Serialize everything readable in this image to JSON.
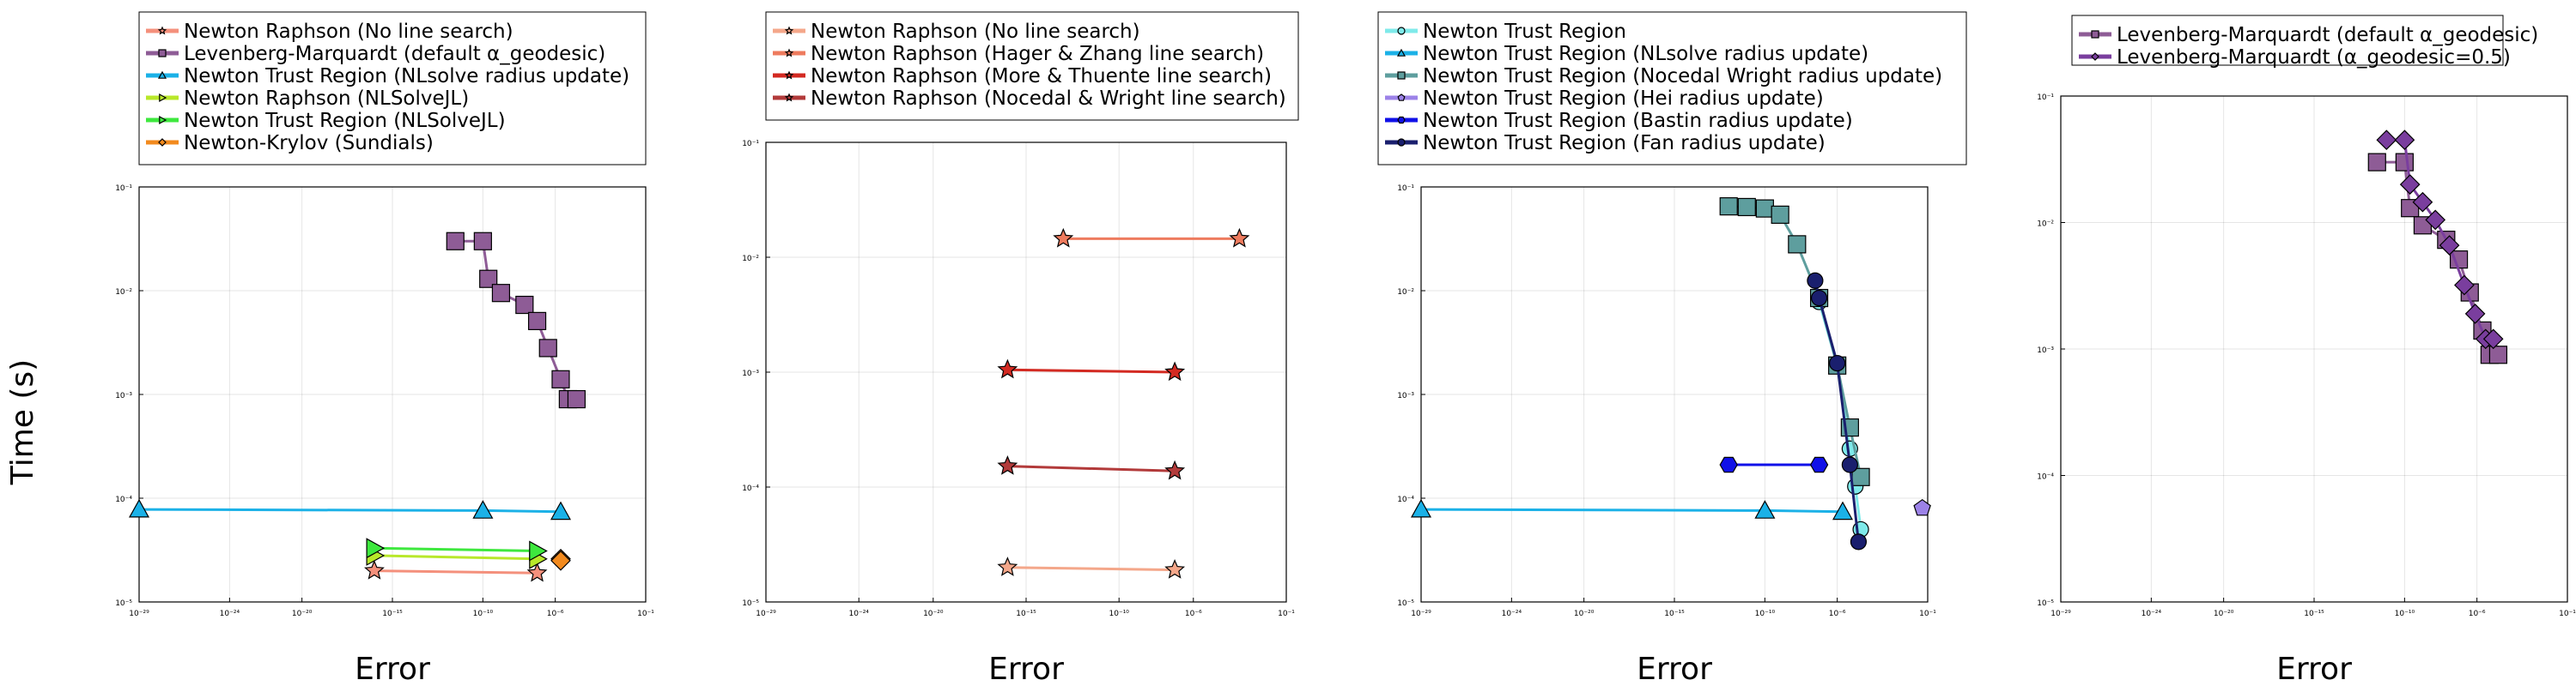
{
  "figure": {
    "ylabel": "Time (s)"
  },
  "chart_data": [
    {
      "type": "scatter",
      "xlabel": "Error",
      "xscale": "log",
      "yscale": "log",
      "xlim": [
        1e-29,
        0.1
      ],
      "ylim": [
        1e-05,
        0.1
      ],
      "xticks": [
        "10⁻²⁹",
        "10⁻²⁴",
        "10⁻²⁰",
        "10⁻¹⁵",
        "10⁻¹⁰",
        "10⁻⁶",
        "10⁻¹"
      ],
      "yticks": [
        "10⁻⁵",
        "10⁻⁴",
        "10⁻³",
        "10⁻²",
        "10⁻¹"
      ],
      "grid": true,
      "legend_position": "top",
      "series": [
        {
          "name": "Newton Raphson (No line search)",
          "color": "#F4907C",
          "marker": "star",
          "x": [
            1e-16,
            1e-07
          ],
          "y": [
            2e-05,
            1.9e-05
          ]
        },
        {
          "name": "Levenberg-Marquardt (default α_geodesic)",
          "color": "#8E5C96",
          "marker": "square",
          "x": [
            3e-12,
            1e-10,
            2e-10,
            1e-09,
            2e-08,
            1e-07,
            4e-07,
            2e-06,
            5e-06,
            1.5e-05
          ],
          "y": [
            0.03,
            0.03,
            0.013,
            0.0095,
            0.0073,
            0.0051,
            0.0028,
            0.0014,
            0.0009,
            0.0009
          ]
        },
        {
          "name": "Newton Trust Region (NLsolve radius update)",
          "color": "#1BB1E7",
          "marker": "triangle",
          "x": [
            1e-29,
            1e-10,
            2e-06
          ],
          "y": [
            7.8e-05,
            7.6e-05,
            7.4e-05
          ]
        },
        {
          "name": "Newton Raphson (NLSolveJL)",
          "color": "#B8E82A",
          "marker": "triangle-right",
          "x": [
            1e-16,
            1e-07
          ],
          "y": [
            2.8e-05,
            2.6e-05
          ]
        },
        {
          "name": "Newton Trust Region (NLSolveJL)",
          "color": "#3EE83E",
          "marker": "triangle-right",
          "x": [
            1e-16,
            1e-07
          ],
          "y": [
            3.3e-05,
            3.1e-05
          ]
        },
        {
          "name": "Newton-Krylov (Sundials)",
          "color": "#F28A1E",
          "marker": "diamond",
          "x": [
            2e-06,
            2e-06
          ],
          "y": [
            2.6e-05,
            2.5e-05
          ]
        }
      ]
    },
    {
      "type": "scatter",
      "xlabel": "Error",
      "xscale": "log",
      "yscale": "log",
      "xlim": [
        1e-29,
        0.1
      ],
      "ylim": [
        1e-05,
        0.1
      ],
      "xticks": [
        "10⁻²⁹",
        "10⁻²⁴",
        "10⁻²⁰",
        "10⁻¹⁵",
        "10⁻¹⁰",
        "10⁻⁶",
        "10⁻¹"
      ],
      "yticks": [
        "10⁻⁵",
        "10⁻⁴",
        "10⁻³",
        "10⁻²",
        "10⁻¹"
      ],
      "grid": true,
      "legend_position": "top",
      "series": [
        {
          "name": "Newton Raphson (No line search)",
          "color": "#F4A78A",
          "marker": "star",
          "x": [
            1e-16,
            1e-07
          ],
          "y": [
            2e-05,
            1.9e-05
          ]
        },
        {
          "name": "Newton Raphson (Hager & Zhang line search)",
          "color": "#EE7B5E",
          "marker": "star",
          "x": [
            1e-13,
            0.0003
          ],
          "y": [
            0.0145,
            0.0145
          ]
        },
        {
          "name": "Newton Raphson (More & Thuente line search)",
          "color": "#D32A22",
          "marker": "star",
          "x": [
            1e-16,
            1e-07
          ],
          "y": [
            0.00105,
            0.001
          ]
        },
        {
          "name": "Newton Raphson (Nocedal & Wright line search)",
          "color": "#B23A3A",
          "marker": "star",
          "x": [
            1e-16,
            1e-07
          ],
          "y": [
            0.000152,
            0.000138
          ]
        }
      ]
    },
    {
      "type": "scatter",
      "xlabel": "Error",
      "xscale": "log",
      "yscale": "log",
      "xlim": [
        1e-29,
        0.1
      ],
      "ylim": [
        1e-05,
        0.1
      ],
      "xticks": [
        "10⁻²⁹",
        "10⁻²⁴",
        "10⁻²⁰",
        "10⁻¹⁵",
        "10⁻¹⁰",
        "10⁻⁶",
        "10⁻¹"
      ],
      "yticks": [
        "10⁻⁵",
        "10⁻⁴",
        "10⁻³",
        "10⁻²",
        "10⁻¹"
      ],
      "grid": true,
      "legend_position": "top",
      "series": [
        {
          "name": "Newton Trust Region",
          "color": "#7FEAEA",
          "marker": "circle",
          "x": [
            1e-07,
            1e-06,
            5e-06,
            1e-05,
            2e-05
          ],
          "y": [
            0.0078,
            0.0019,
            0.0003,
            0.00013,
            5e-05
          ]
        },
        {
          "name": "Newton Trust Region (NLsolve radius update)",
          "color": "#1BB1E7",
          "marker": "triangle",
          "x": [
            1e-29,
            1e-10,
            2e-06
          ],
          "y": [
            7.8e-05,
            7.6e-05,
            7.4e-05
          ]
        },
        {
          "name": "Newton Trust Region (Nocedal Wright radius update)",
          "color": "#5E9E9E",
          "marker": "square",
          "x": [
            1e-12,
            1e-11,
            1e-10,
            7e-10,
            6e-09,
            1e-07,
            1e-06,
            5e-06,
            2e-05
          ],
          "y": [
            0.065,
            0.064,
            0.062,
            0.054,
            0.028,
            0.0085,
            0.0019,
            0.00048,
            0.00016
          ]
        },
        {
          "name": "Newton Trust Region (Hei radius update)",
          "color": "#9C82E8",
          "marker": "pentagon",
          "x": [
            0.05
          ],
          "y": [
            8e-05
          ]
        },
        {
          "name": "Newton Trust Region (Bastin radius update)",
          "color": "#1010E8",
          "marker": "hexagon",
          "x": [
            1e-12,
            1e-07
          ],
          "y": [
            0.00021,
            0.00021
          ]
        },
        {
          "name": "Newton Trust Region (Fan radius update)",
          "color": "#1A1F6E",
          "marker": "circle",
          "x": [
            6e-08,
            1e-07,
            1e-06,
            5e-06,
            1.5e-05
          ],
          "y": [
            0.0125,
            0.0085,
            0.002,
            0.00021,
            3.8e-05
          ]
        }
      ]
    },
    {
      "type": "scatter",
      "xlabel": "Error",
      "xscale": "log",
      "yscale": "log",
      "xlim": [
        1e-29,
        0.1
      ],
      "ylim": [
        1e-05,
        0.1
      ],
      "xticks": [
        "10⁻²⁹",
        "10⁻²⁴",
        "10⁻²⁰",
        "10⁻¹⁵",
        "10⁻¹⁰",
        "10⁻⁶",
        "10⁻¹"
      ],
      "yticks": [
        "10⁻⁵",
        "10⁻⁴",
        "10⁻³",
        "10⁻²",
        "10⁻¹"
      ],
      "grid": true,
      "legend_position": "top",
      "series": [
        {
          "name": "Levenberg-Marquardt (default α_geodesic)",
          "color": "#8E5C96",
          "marker": "square",
          "x": [
            3e-12,
            1e-10,
            2e-10,
            1e-09,
            2e-08,
            1e-07,
            4e-07,
            2e-06,
            5e-06,
            1.5e-05
          ],
          "y": [
            0.03,
            0.03,
            0.013,
            0.0095,
            0.0073,
            0.0051,
            0.0028,
            0.0014,
            0.0009,
            0.0009
          ]
        },
        {
          "name": "Levenberg-Marquardt (α_geodesic=0.5)",
          "color": "#7A3E9E",
          "marker": "diamond",
          "x": [
            1e-11,
            1e-10,
            2e-10,
            1e-09,
            5e-09,
            3e-08,
            2e-07,
            8e-07,
            3e-06,
            8e-06
          ],
          "y": [
            0.045,
            0.045,
            0.02,
            0.0145,
            0.0105,
            0.0066,
            0.0032,
            0.0019,
            0.0012,
            0.0012
          ]
        }
      ]
    }
  ]
}
